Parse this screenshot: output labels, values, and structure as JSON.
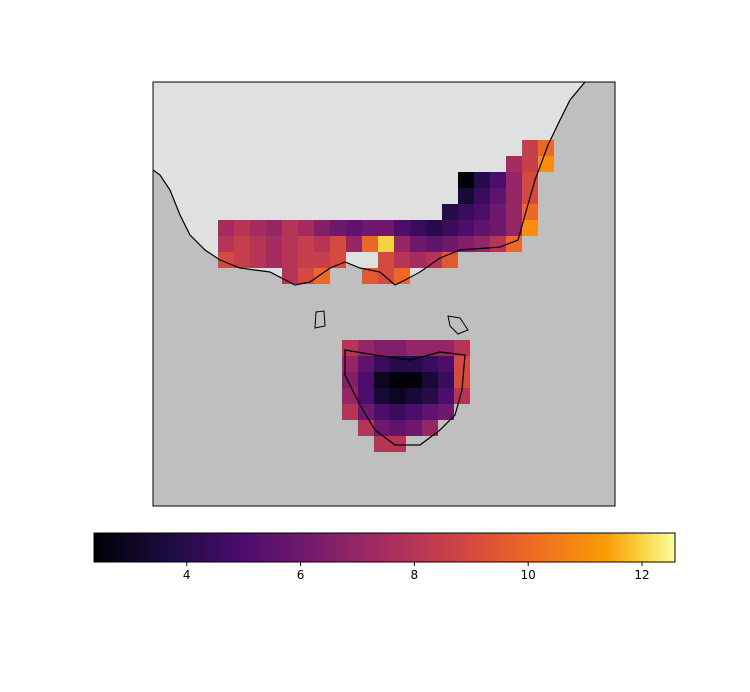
{
  "chart_data": {
    "type": "heatmap",
    "colormap": "inferno",
    "clim": [
      2.37,
      12.58
    ],
    "colorbar_ticks": [
      4,
      6,
      8,
      10,
      12
    ],
    "mainland": [
      [
        null,
        null,
        null,
        null,
        null,
        null,
        null,
        null,
        null,
        null,
        null,
        null,
        null,
        null,
        null,
        null,
        null,
        null,
        null,
        8.5,
        10
      ],
      [
        null,
        null,
        null,
        null,
        null,
        null,
        null,
        null,
        null,
        null,
        null,
        null,
        null,
        null,
        null,
        null,
        null,
        null,
        7.5,
        8.5,
        11
      ],
      [
        null,
        null,
        null,
        null,
        null,
        null,
        null,
        null,
        null,
        null,
        null,
        null,
        null,
        null,
        null,
        2.5,
        4,
        5,
        7,
        9,
        null
      ],
      [
        null,
        null,
        null,
        null,
        null,
        null,
        null,
        null,
        null,
        null,
        null,
        null,
        null,
        null,
        null,
        3.5,
        4.5,
        5.5,
        7,
        9,
        null
      ],
      [
        null,
        null,
        null,
        null,
        null,
        null,
        null,
        null,
        null,
        null,
        null,
        null,
        null,
        null,
        4,
        4.5,
        5,
        6,
        7,
        10,
        null
      ],
      [
        7.5,
        8,
        7.5,
        7,
        8,
        7.5,
        6.5,
        6,
        5.5,
        6,
        6,
        5,
        4.5,
        4,
        4.5,
        5,
        5.5,
        6,
        7,
        11,
        null
      ],
      [
        8,
        8.5,
        8,
        7.5,
        8,
        8.5,
        8,
        9,
        7,
        10,
        12,
        7,
        6,
        5.5,
        6,
        6.5,
        7,
        8,
        10,
        null,
        null
      ],
      [
        9,
        8.5,
        8,
        7.5,
        8,
        8.5,
        8.5,
        9,
        null,
        null,
        9,
        8,
        7.5,
        8,
        9.5,
        null,
        null,
        null,
        null,
        null,
        null
      ],
      [
        null,
        null,
        null,
        null,
        8,
        9,
        10,
        null,
        null,
        9.5,
        9,
        10,
        null,
        null,
        null,
        null,
        null,
        null,
        null,
        null,
        null
      ]
    ],
    "tasmania": [
      [
        8,
        7,
        6.5,
        6.5,
        7,
        7,
        7,
        8
      ],
      [
        7,
        5.5,
        4.5,
        4,
        4,
        4.5,
        5,
        9
      ],
      [
        6.5,
        5,
        3,
        2.5,
        2.5,
        3.5,
        4.5,
        9
      ],
      [
        7,
        5,
        3.5,
        3,
        3.5,
        4,
        5,
        8
      ],
      [
        8,
        6,
        5,
        4.5,
        5,
        5.5,
        6,
        null
      ],
      [
        null,
        8,
        6,
        5.5,
        6,
        7,
        null,
        null
      ],
      [
        null,
        null,
        8,
        8,
        null,
        null,
        null,
        null
      ]
    ]
  }
}
